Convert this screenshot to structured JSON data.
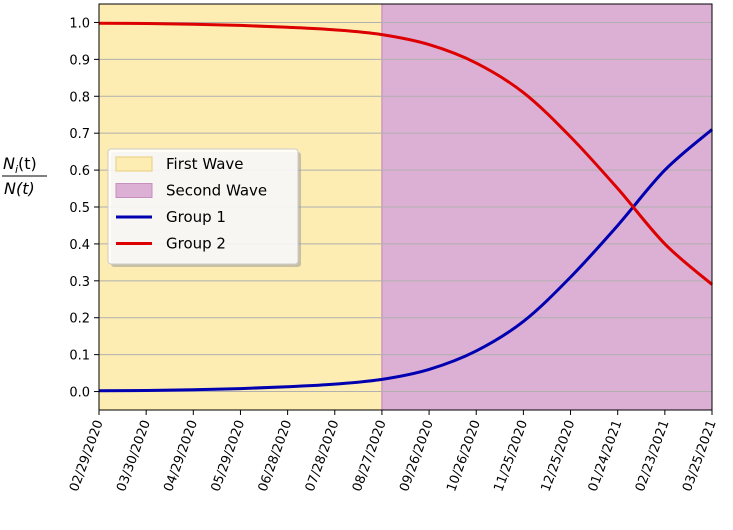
{
  "chart_data": {
    "type": "line",
    "title": "",
    "xlabel": "",
    "ylabel": {
      "numerator": "N",
      "numerator_sub": "i",
      "numerator_arg": "(t)",
      "denominator": "N(t)"
    },
    "ylim": [
      -0.05,
      1.05
    ],
    "yticks": [
      0.0,
      0.1,
      0.2,
      0.3,
      0.4,
      0.5,
      0.6,
      0.7,
      0.8,
      0.9,
      1.0
    ],
    "ytick_labels": [
      "0.0",
      "0.1",
      "0.2",
      "0.3",
      "0.4",
      "0.5",
      "0.6",
      "0.7",
      "0.8",
      "0.9",
      "1.0"
    ],
    "x_start": "2020-02-29",
    "x_end": "2021-03-25",
    "xticks": [
      "2020-02-29",
      "2020-03-30",
      "2020-04-29",
      "2020-05-29",
      "2020-06-28",
      "2020-07-28",
      "2020-08-27",
      "2020-09-26",
      "2020-10-26",
      "2020-11-25",
      "2020-12-25",
      "2021-01-24",
      "2021-02-23",
      "2021-03-25"
    ],
    "xtick_labels": [
      "02/29/2020",
      "03/30/2020",
      "04/29/2020",
      "05/29/2020",
      "06/28/2020",
      "07/28/2020",
      "08/27/2020",
      "09/26/2020",
      "10/26/2020",
      "11/25/2020",
      "12/25/2020",
      "01/24/2021",
      "02/23/2021",
      "03/25/2021"
    ],
    "grid": "horizontal",
    "legend_position": "center-left",
    "regions": [
      {
        "name": "First Wave",
        "start": "2020-02-29",
        "end": "2020-08-27",
        "color": "#fdedb2"
      },
      {
        "name": "Second Wave",
        "start": "2020-08-27",
        "end": "2021-03-25",
        "color": "#dbb0d4"
      }
    ],
    "series": [
      {
        "name": "Group 1",
        "color": "#0000b0",
        "x": [
          "2020-02-29",
          "2020-03-30",
          "2020-04-29",
          "2020-05-29",
          "2020-06-28",
          "2020-07-28",
          "2020-08-27",
          "2020-09-26",
          "2020-10-26",
          "2020-11-25",
          "2020-12-25",
          "2021-01-24",
          "2021-02-23",
          "2021-03-25"
        ],
        "y": [
          0.002,
          0.003,
          0.005,
          0.008,
          0.013,
          0.02,
          0.033,
          0.06,
          0.11,
          0.19,
          0.31,
          0.45,
          0.6,
          0.71
        ]
      },
      {
        "name": "Group 2",
        "color": "#dd0000",
        "x": [
          "2020-02-29",
          "2020-03-30",
          "2020-04-29",
          "2020-05-29",
          "2020-06-28",
          "2020-07-28",
          "2020-08-27",
          "2020-09-26",
          "2020-10-26",
          "2020-11-25",
          "2020-12-25",
          "2021-01-24",
          "2021-02-23",
          "2021-03-25"
        ],
        "y": [
          0.998,
          0.997,
          0.995,
          0.992,
          0.987,
          0.98,
          0.967,
          0.94,
          0.89,
          0.81,
          0.69,
          0.55,
          0.4,
          0.29
        ]
      }
    ]
  }
}
